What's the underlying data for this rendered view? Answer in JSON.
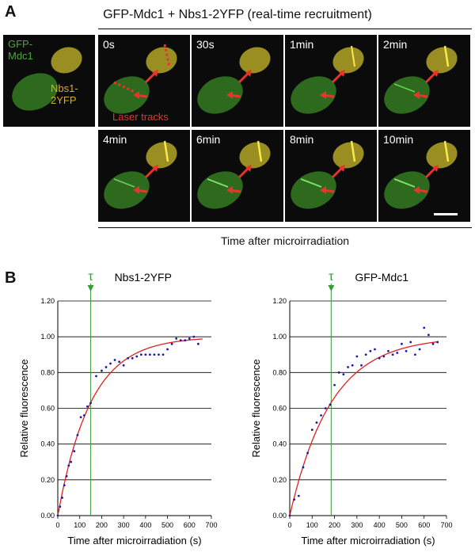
{
  "panel_a": {
    "letter": "A",
    "title": "GFP-Mdc1 + Nbs1-2YFP (real-time recruitment)",
    "overlay_left_label": "GFP-\nMdc1",
    "overlay_right_label": "Nbs1-\n2YFP",
    "laser_label": "Laser tracks",
    "time_labels": [
      "0s",
      "30s",
      "1min",
      "2min",
      "4min",
      "6min",
      "8min",
      "10min"
    ],
    "caption": "Time after microirradiation",
    "colors": {
      "green": "#4aa83a",
      "yellow": "#d9b021",
      "red": "#e8352c"
    }
  },
  "panel_b": {
    "letter": "B",
    "tau_symbol": "τ"
  },
  "chart_data": [
    {
      "type": "scatter",
      "title": "Nbs1-2YFP",
      "xlabel": "Time after microirradiation (s)",
      "ylabel": "Relative fluorescence",
      "xlim": [
        0,
        700
      ],
      "ylim": [
        0,
        1.2
      ],
      "x_ticks": [
        0,
        100,
        200,
        300,
        400,
        500,
        600,
        700
      ],
      "y_ticks": [
        "0.00",
        "0.20",
        "0.40",
        "0.60",
        "0.80",
        "1.00",
        "1.20"
      ],
      "grid": "horizontal",
      "tau": 150,
      "fit_tau": 150,
      "points": {
        "x": [
          0,
          10,
          20,
          30,
          40,
          50,
          60,
          75,
          90,
          105,
          120,
          135,
          150,
          175,
          200,
          220,
          240,
          260,
          280,
          300,
          320,
          340,
          360,
          380,
          400,
          420,
          440,
          460,
          480,
          500,
          520,
          540,
          560,
          580,
          600,
          620,
          640
        ],
        "y": [
          0.0,
          0.05,
          0.1,
          0.17,
          0.22,
          0.28,
          0.3,
          0.36,
          0.45,
          0.55,
          0.56,
          0.61,
          0.63,
          0.78,
          0.81,
          0.83,
          0.85,
          0.87,
          0.86,
          0.84,
          0.88,
          0.88,
          0.89,
          0.9,
          0.9,
          0.9,
          0.9,
          0.9,
          0.9,
          0.93,
          0.96,
          0.99,
          0.98,
          0.98,
          0.99,
          1.0,
          0.96
        ]
      }
    },
    {
      "type": "scatter",
      "title": "GFP-Mdc1",
      "xlabel": "Time after microirradiation (s)",
      "ylabel": "Relative fluorescence",
      "xlim": [
        0,
        700
      ],
      "ylim": [
        0,
        1.2
      ],
      "x_ticks": [
        0,
        100,
        200,
        300,
        400,
        500,
        600,
        700
      ],
      "y_ticks": [
        "0.00",
        "0.20",
        "0.40",
        "0.60",
        "0.80",
        "1.00",
        "1.20"
      ],
      "grid": "horizontal",
      "tau": 185,
      "fit_tau": 185,
      "points": {
        "x": [
          0,
          20,
          40,
          60,
          80,
          100,
          120,
          140,
          160,
          180,
          200,
          220,
          240,
          260,
          280,
          300,
          320,
          340,
          360,
          380,
          400,
          420,
          440,
          460,
          480,
          500,
          520,
          540,
          560,
          580,
          600,
          620,
          640,
          660
        ],
        "y": [
          0.0,
          0.09,
          0.11,
          0.27,
          0.35,
          0.48,
          0.52,
          0.56,
          0.6,
          0.62,
          0.73,
          0.8,
          0.79,
          0.83,
          0.84,
          0.89,
          0.84,
          0.9,
          0.92,
          0.93,
          0.88,
          0.89,
          0.92,
          0.9,
          0.91,
          0.96,
          0.92,
          0.97,
          0.9,
          0.93,
          1.05,
          1.01,
          0.96,
          0.97
        ]
      }
    }
  ]
}
